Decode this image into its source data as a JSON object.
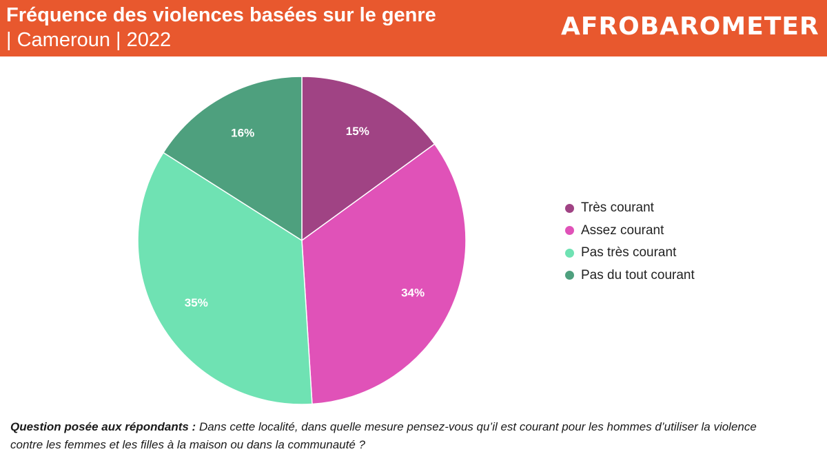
{
  "header": {
    "title_line1": "Fréquence des violences basées sur le genre",
    "title_line2": "| Cameroun | 2022",
    "logo_text": "AFROBAROMETER",
    "background_color": "#e8582e"
  },
  "chart_data": {
    "type": "pie",
    "title": "Fréquence des violences basées sur le genre | Cameroun | 2022",
    "start_angle_deg": 0,
    "direction": "clockwise",
    "legend_position": "right",
    "slices": [
      {
        "name": "Très courant",
        "value": 15,
        "label": "15%",
        "color": "#a04384"
      },
      {
        "name": "Assez courant",
        "value": 34,
        "label": "34%",
        "color": "#e052b8"
      },
      {
        "name": "Pas très courant",
        "value": 35,
        "label": "35%",
        "color": "#6fe2b3"
      },
      {
        "name": "Pas du tout courant",
        "value": 16,
        "label": "16%",
        "color": "#4ea07e"
      }
    ]
  },
  "footnote": {
    "question_label": "Question posée aux répondants :",
    "question_text": "Dans cette localité, dans quelle mesure pensez-vous qu’il est courant pour les hommes d’utiliser la violence contre les femmes et les filles à la maison ou dans la communauté ?"
  }
}
